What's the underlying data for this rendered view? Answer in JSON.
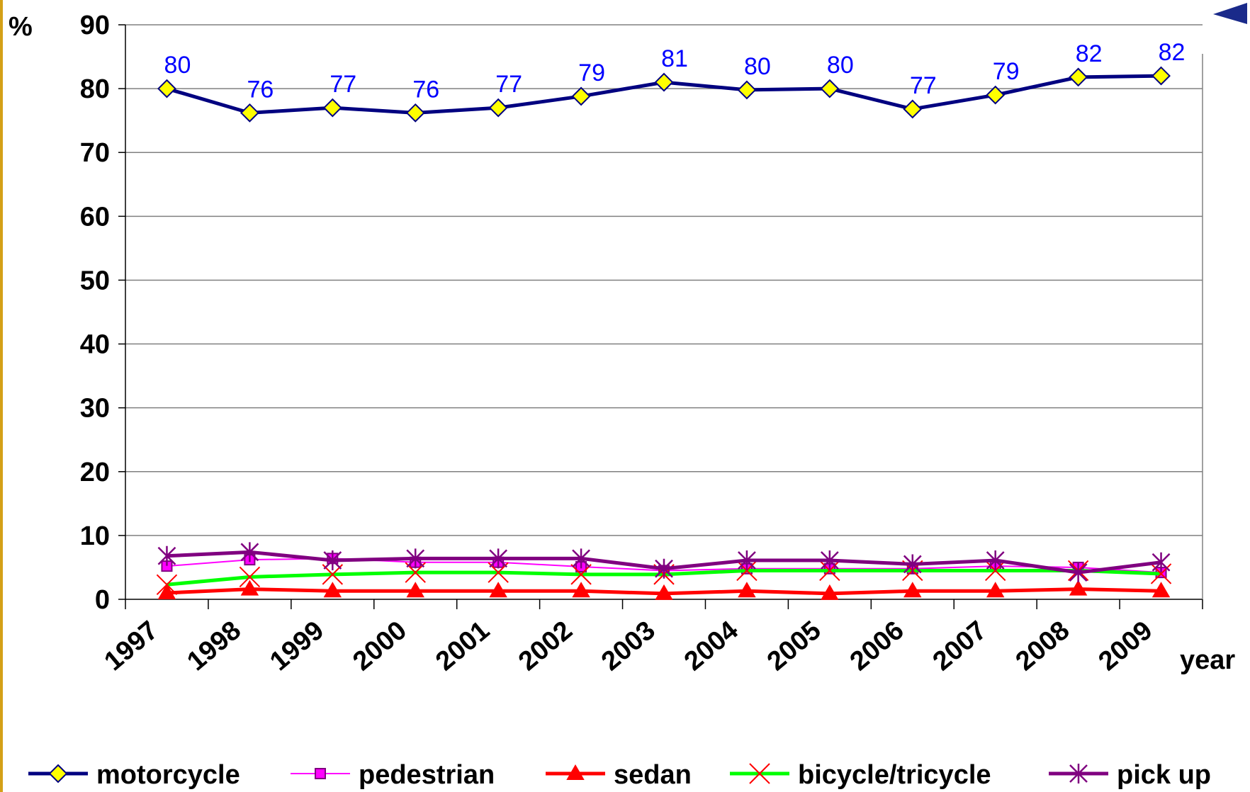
{
  "chart_data": {
    "type": "line",
    "y_label": "%",
    "x_label": "year",
    "categories": [
      "1997",
      "1998",
      "1999",
      "2000",
      "2001",
      "2002",
      "2003",
      "2004",
      "2005",
      "2006",
      "2007",
      "2008",
      "2009"
    ],
    "ylim": [
      0,
      90
    ],
    "yticks": [
      0,
      10,
      20,
      30,
      40,
      50,
      60,
      70,
      80,
      90
    ],
    "grid": true,
    "legend": "bottom",
    "series": [
      {
        "name": "motorcycle",
        "color": "#000080",
        "marker": "diamond",
        "marker_color": "#ffff00",
        "values": [
          80,
          76.2,
          77,
          76.2,
          77,
          78.8,
          81,
          79.8,
          80,
          76.8,
          79,
          81.8,
          82
        ],
        "value_labels": [
          "80",
          "76",
          "77",
          "76",
          "77",
          "79",
          "81",
          "80",
          "80",
          "77",
          "79",
          "82",
          "82"
        ],
        "label_color": "#0000ff"
      },
      {
        "name": "pedestrian",
        "color": "#ff00ff",
        "marker": "square",
        "marker_color": "#ff00ff",
        "values": [
          5.2,
          6.2,
          6.4,
          5.8,
          5.8,
          5.1,
          4.5,
          4.8,
          4.8,
          4.8,
          5.2,
          5.0,
          4.2
        ]
      },
      {
        "name": "sedan",
        "color": "#ff0000",
        "marker": "triangle",
        "marker_color": "#ff0000",
        "values": [
          1.0,
          1.6,
          1.3,
          1.3,
          1.3,
          1.3,
          0.9,
          1.3,
          0.9,
          1.3,
          1.3,
          1.6,
          1.3
        ]
      },
      {
        "name": "bicycle/tricycle",
        "color": "#00ff00",
        "marker": "x",
        "marker_color": "#ff0000",
        "values": [
          2.3,
          3.5,
          3.9,
          4.2,
          4.2,
          3.9,
          3.9,
          4.5,
          4.5,
          4.5,
          4.5,
          4.5,
          4.0
        ]
      },
      {
        "name": "pick up",
        "color": "#800080",
        "marker": "star",
        "marker_color": "#800080",
        "values": [
          6.8,
          7.4,
          6.1,
          6.4,
          6.4,
          6.4,
          4.8,
          6.1,
          6.1,
          5.5,
          6.1,
          4.2,
          5.8
        ]
      }
    ]
  }
}
